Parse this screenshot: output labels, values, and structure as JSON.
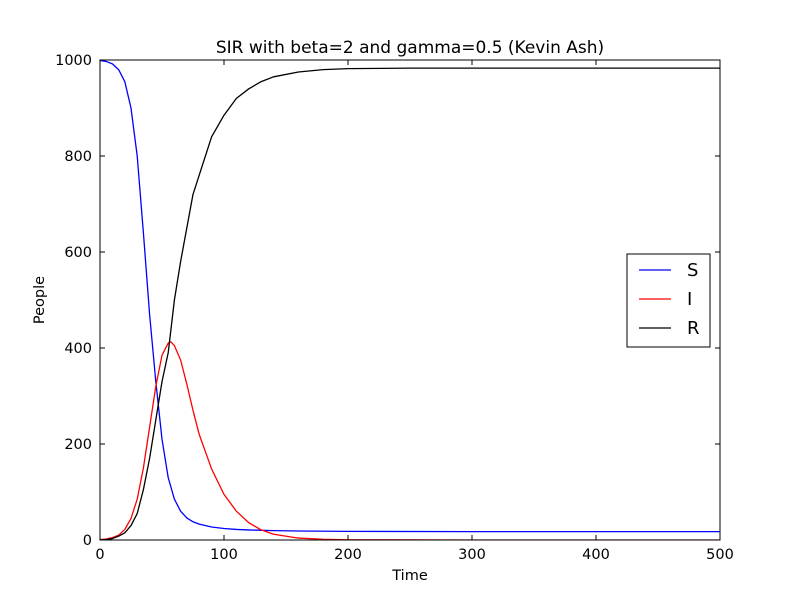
{
  "chart_data": {
    "type": "line",
    "title": "SIR with beta=2 and gamma=0.5 (Kevin Ash)",
    "xlabel": "Time",
    "ylabel": "People",
    "xlim": [
      0,
      500
    ],
    "ylim": [
      0,
      1000
    ],
    "xticks": [
      0,
      100,
      200,
      300,
      400,
      500
    ],
    "yticks": [
      0,
      200,
      400,
      600,
      800,
      1000
    ],
    "grid": false,
    "legend_position": "center-right",
    "series": [
      {
        "name": "S",
        "color": "#0000ff",
        "x": [
          0,
          5,
          10,
          15,
          20,
          25,
          30,
          35,
          40,
          45,
          50,
          55,
          60,
          65,
          70,
          75,
          80,
          90,
          100,
          110,
          120,
          140,
          160,
          200,
          300,
          400,
          500
        ],
        "y": [
          999,
          997,
          992,
          980,
          955,
          900,
          800,
          640,
          470,
          330,
          210,
          130,
          85,
          60,
          46,
          38,
          33,
          27,
          24,
          22,
          21,
          19.5,
          18.8,
          18,
          17.5,
          17.5,
          17.5
        ]
      },
      {
        "name": "I",
        "color": "#ff0000",
        "x": [
          0,
          5,
          10,
          15,
          20,
          25,
          30,
          35,
          40,
          45,
          50,
          55,
          57,
          60,
          65,
          70,
          75,
          80,
          90,
          100,
          110,
          120,
          130,
          140,
          160,
          180,
          200,
          300,
          400,
          500
        ],
        "y": [
          1,
          2,
          5,
          10,
          22,
          45,
          85,
          150,
          235,
          320,
          385,
          410,
          413,
          405,
          375,
          325,
          270,
          220,
          148,
          95,
          60,
          36,
          21,
          12,
          4,
          1.5,
          0.5,
          0,
          0,
          0
        ]
      },
      {
        "name": "R",
        "color": "#000000",
        "x": [
          0,
          5,
          10,
          15,
          20,
          25,
          30,
          35,
          40,
          45,
          50,
          55,
          60,
          65,
          70,
          75,
          80,
          90,
          100,
          110,
          120,
          130,
          140,
          160,
          180,
          200,
          250,
          300,
          400,
          500
        ],
        "y": [
          0,
          1,
          3,
          8,
          15,
          30,
          55,
          105,
          170,
          250,
          330,
          390,
          500,
          580,
          650,
          720,
          760,
          840,
          885,
          920,
          940,
          955,
          965,
          975,
          980,
          982,
          983,
          983,
          983,
          983
        ]
      }
    ]
  }
}
